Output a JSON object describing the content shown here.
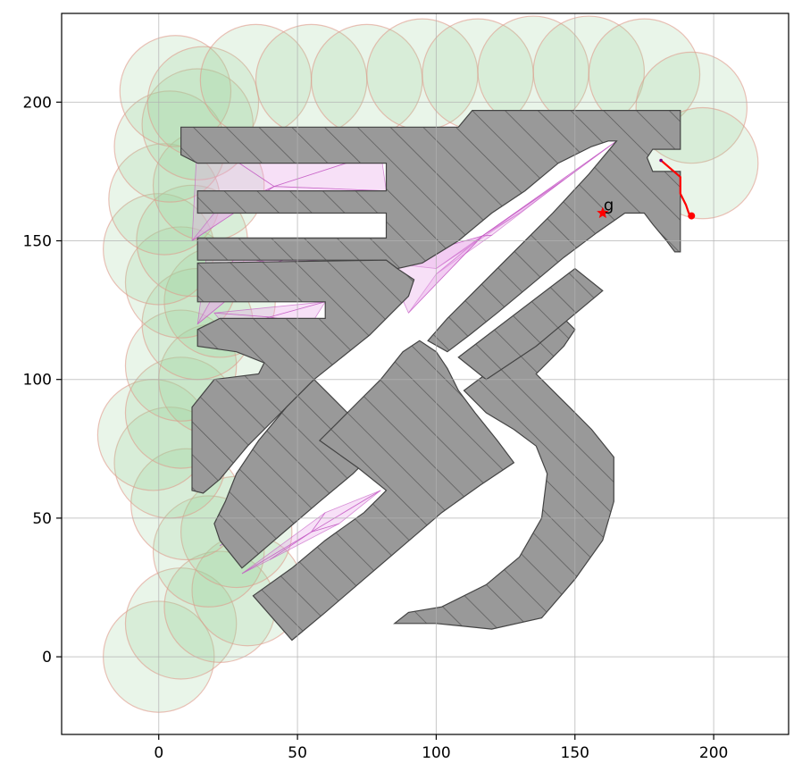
{
  "chart_data": {
    "type": "scatter",
    "title": "",
    "xlabel": "",
    "ylabel": "",
    "xlim": [
      -35,
      227
    ],
    "ylim": [
      -28,
      232
    ],
    "grid": true,
    "xticks": [
      "0",
      "50",
      "100",
      "150",
      "200"
    ],
    "yticks": [
      "0",
      "50",
      "100",
      "150",
      "200"
    ],
    "xtick_values": [
      0,
      50,
      100,
      150,
      200
    ],
    "ytick_values": [
      0,
      50,
      100,
      150,
      200
    ],
    "colors": {
      "obstacle_fill": "#999999",
      "obstacle_edge": "#444444",
      "circle_fill": "#9ad29a",
      "circle_edge": "#e09a8a",
      "triangle_fill": "#e8a6e8",
      "triangle_edge": "#c04fc0",
      "path": "#ff0000",
      "goal": "#ff0000"
    },
    "goal": {
      "label": "g",
      "x": 160,
      "y": 160
    },
    "path": [
      [
        181,
        179
      ],
      [
        188,
        173
      ],
      [
        188,
        167
      ],
      [
        190,
        163
      ],
      [
        191,
        160
      ],
      [
        192,
        159
      ]
    ],
    "start_point": [
      192,
      159
    ],
    "obstacles": [
      [
        [
          8,
          191
        ],
        [
          188,
          197
        ],
        [
          188,
          181
        ],
        [
          168,
          181
        ],
        [
          168,
          172
        ],
        [
          169,
          170
        ],
        [
          172,
          167
        ],
        [
          176,
          163
        ],
        [
          180,
          158
        ],
        [
          184,
          151
        ],
        [
          186,
          145
        ],
        [
          188,
          146
        ],
        [
          188,
          165
        ],
        [
          180,
          165
        ],
        [
          175,
          165
        ],
        [
          170,
          159
        ],
        [
          160,
          152
        ],
        [
          150,
          144
        ],
        [
          140,
          133
        ],
        [
          130,
          122
        ],
        [
          122,
          114
        ],
        [
          116,
          108
        ],
        [
          110,
          113
        ],
        [
          104,
          116
        ],
        [
          100,
          119
        ],
        [
          100,
          125
        ],
        [
          92,
          124
        ],
        [
          84,
          136
        ],
        [
          82,
          143
        ],
        [
          76,
          148
        ],
        [
          70,
          148
        ],
        [
          58,
          154
        ],
        [
          48,
          158
        ],
        [
          35,
          159
        ],
        [
          20,
          159
        ],
        [
          15,
          158
        ],
        [
          14,
          143
        ],
        [
          20,
          142
        ],
        [
          80,
          142
        ],
        [
          82,
          126
        ],
        [
          72,
          116
        ],
        [
          64,
          108
        ],
        [
          58,
          102
        ],
        [
          50,
          94
        ],
        [
          40,
          90
        ],
        [
          20,
          82
        ],
        [
          14,
          78
        ],
        [
          12,
          59
        ],
        [
          14,
          58
        ],
        [
          18,
          63
        ],
        [
          25,
          72
        ],
        [
          35,
          84
        ],
        [
          45,
          95
        ],
        [
          50,
          100
        ],
        [
          60,
          110
        ],
        [
          70,
          118
        ],
        [
          80,
          126
        ],
        [
          90,
          134
        ],
        [
          100,
          140
        ],
        [
          110,
          148
        ],
        [
          120,
          158
        ],
        [
          130,
          166
        ],
        [
          140,
          174
        ],
        [
          150,
          182
        ],
        [
          156,
          186
        ],
        [
          162,
          190
        ],
        [
          170,
          194
        ],
        [
          180,
          197
        ]
      ]
    ]
  }
}
